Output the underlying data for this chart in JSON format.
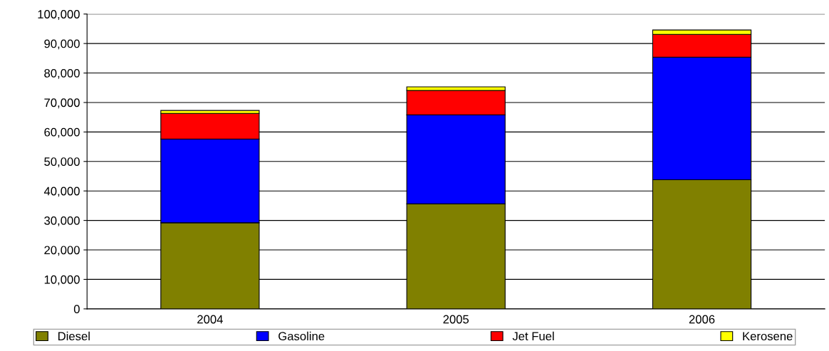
{
  "chart_data": {
    "type": "bar",
    "stacked": true,
    "categories": [
      "2004",
      "2005",
      "2006"
    ],
    "series": [
      {
        "name": "Diesel",
        "color": "#808000",
        "values": [
          29200,
          35600,
          43800
        ]
      },
      {
        "name": "Gasoline",
        "color": "#0000ff",
        "values": [
          28400,
          30200,
          41600
        ]
      },
      {
        "name": "Jet Fuel",
        "color": "#ff0000",
        "values": [
          8700,
          8300,
          7700
        ]
      },
      {
        "name": "Kerosene",
        "color": "#ffff00",
        "values": [
          1000,
          1200,
          1500
        ]
      }
    ],
    "ylim": [
      0,
      100000
    ],
    "yticks": [
      {
        "value": 0,
        "label": "0"
      },
      {
        "value": 10000,
        "label": "10,000"
      },
      {
        "value": 20000,
        "label": "20,000"
      },
      {
        "value": 30000,
        "label": "30,000"
      },
      {
        "value": 40000,
        "label": "40,000"
      },
      {
        "value": 50000,
        "label": "50,000"
      },
      {
        "value": 60000,
        "label": "60,000"
      },
      {
        "value": 70000,
        "label": "70,000"
      },
      {
        "value": 80000,
        "label": "80,000"
      },
      {
        "value": 90000,
        "label": "90,000"
      },
      {
        "value": 100000,
        "label": "100,000"
      }
    ],
    "grid": "y",
    "legend": "bottom"
  }
}
